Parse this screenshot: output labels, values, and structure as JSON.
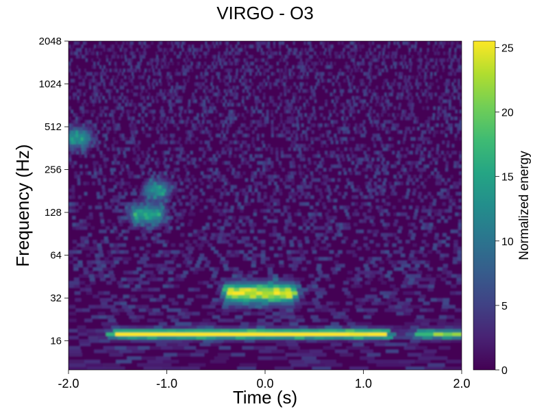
{
  "chart_data": {
    "type": "heatmap",
    "title": "VIRGO - O3",
    "xlabel": "Time (s)",
    "ylabel": "Frequency (Hz)",
    "xlim": [
      -2.0,
      2.0
    ],
    "xticks": [
      -2.0,
      -1.0,
      0.0,
      1.0,
      2.0
    ],
    "xtick_labels": [
      "-2.0",
      "-1.0",
      "0.0",
      "1.0",
      "2.0"
    ],
    "ylim": [
      10,
      2048
    ],
    "yscale": "log2",
    "yticks": [
      16,
      32,
      64,
      128,
      256,
      512,
      1024,
      2048
    ],
    "ytick_labels": [
      "16",
      "32",
      "64",
      "128",
      "256",
      "512",
      "1024",
      "2048"
    ],
    "colorbar": {
      "label": "Normalized energy",
      "range": [
        0,
        25.5
      ],
      "ticks": [
        0,
        5,
        10,
        15,
        20,
        25
      ],
      "tick_labels": [
        "0",
        "5",
        "10",
        "15",
        "20",
        "25"
      ],
      "colormap": "viridis"
    },
    "features": [
      {
        "t_start": -1.5,
        "t_end": 1.2,
        "freq": 18,
        "energy": 25
      },
      {
        "t_start": 1.6,
        "t_end": 2.0,
        "freq": 18,
        "energy": 17
      },
      {
        "t_start": -0.35,
        "t_end": 0.25,
        "freq": 35,
        "energy": 22
      },
      {
        "t_start": -1.3,
        "t_end": -1.1,
        "freq": 125,
        "energy": 13
      },
      {
        "t_start": -1.98,
        "t_end": -1.85,
        "freq": 430,
        "energy": 12
      },
      {
        "t_start": -1.15,
        "t_end": -1.05,
        "freq": 185,
        "energy": 11
      }
    ],
    "grid": false,
    "legend": "colorbar-right"
  }
}
